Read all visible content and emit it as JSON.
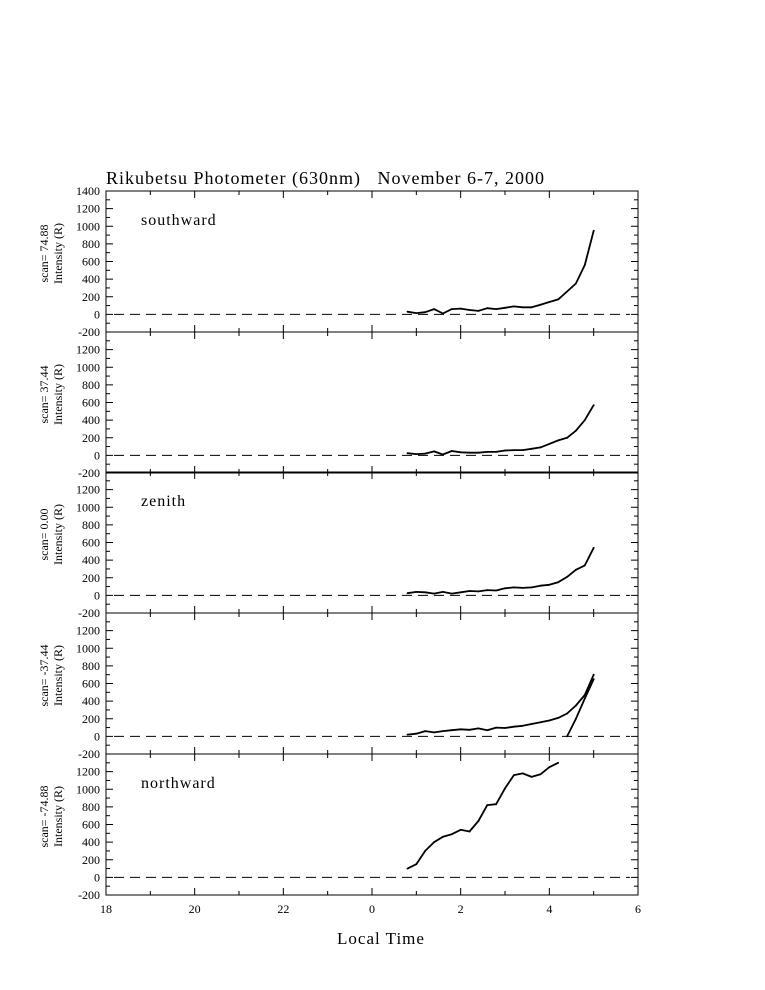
{
  "chart_data": {
    "type": "line",
    "title": "Rikubetsu Photometer (630nm)   November 6-7, 2000",
    "xlabel": "Local Time",
    "x_ticks": [
      "18",
      "20",
      "22",
      "0",
      "2",
      "4",
      "6"
    ],
    "xlim": [
      18,
      30
    ],
    "panels": [
      {
        "scan_label": "scan= 74.88",
        "ylabel": "Intensity (R)",
        "annotation": "southward",
        "ylim": [
          -200,
          1400
        ],
        "y_ticks": [
          "-200",
          "0",
          "200",
          "400",
          "600",
          "800",
          "1000",
          "1200",
          "1400"
        ],
        "series": [
          {
            "x": [
              24.8,
              25.0,
              25.2,
              25.4,
              25.6,
              25.8,
              26.0,
              26.2,
              26.4,
              26.6,
              26.8,
              27.0,
              27.2,
              27.4,
              27.6,
              27.8,
              28.0,
              28.2,
              28.4,
              28.6,
              28.8,
              29.0
            ],
            "y": [
              30,
              15,
              25,
              60,
              10,
              60,
              65,
              50,
              40,
              70,
              60,
              75,
              90,
              80,
              80,
              110,
              140,
              170,
              260,
              350,
              560,
              950
            ]
          }
        ]
      },
      {
        "scan_label": "scan= 37.44",
        "ylabel": "Intensity (R)",
        "annotation": "",
        "ylim": [
          -200,
          1400
        ],
        "y_ticks": [
          "-200",
          "0",
          "200",
          "400",
          "600",
          "800",
          "1000",
          "1200"
        ],
        "series": [
          {
            "x": [
              24.8,
              25.0,
              25.2,
              25.4,
              25.6,
              25.8,
              26.0,
              26.2,
              26.4,
              26.6,
              26.8,
              27.0,
              27.2,
              27.4,
              27.6,
              27.8,
              28.0,
              28.2,
              28.4,
              28.6,
              28.8,
              29.0
            ],
            "y": [
              25,
              15,
              20,
              45,
              10,
              50,
              35,
              30,
              30,
              40,
              40,
              55,
              60,
              60,
              75,
              90,
              130,
              170,
              200,
              280,
              400,
              570
            ]
          }
        ]
      },
      {
        "scan_label": "scan= 0.00",
        "ylabel": "Intensity (R)",
        "annotation": "zenith",
        "ylim": [
          -200,
          1400
        ],
        "y_ticks": [
          "-200",
          "0",
          "200",
          "400",
          "600",
          "800",
          "1000",
          "1200"
        ],
        "series": [
          {
            "x": [
              24.8,
              25.0,
              25.2,
              25.4,
              25.6,
              25.8,
              26.0,
              26.2,
              26.4,
              26.6,
              26.8,
              27.0,
              27.2,
              27.4,
              27.6,
              27.8,
              28.0,
              28.2,
              28.4,
              28.6,
              28.8,
              29.0
            ],
            "y": [
              25,
              40,
              35,
              20,
              40,
              20,
              35,
              50,
              45,
              60,
              55,
              80,
              90,
              85,
              90,
              110,
              120,
              150,
              210,
              290,
              340,
              540
            ]
          }
        ]
      },
      {
        "scan_label": "scan= -37.44",
        "ylabel": "Intensity (R)",
        "annotation": "",
        "ylim": [
          -200,
          1400
        ],
        "y_ticks": [
          "-200",
          "0",
          "200",
          "400",
          "600",
          "800",
          "1000",
          "1200"
        ],
        "series": [
          {
            "x": [
              24.8,
              25.0,
              25.2,
              25.4,
              25.6,
              25.8,
              26.0,
              26.2,
              26.4,
              26.6,
              26.8,
              27.0,
              27.2,
              27.4,
              27.6,
              27.8,
              28.0,
              28.2,
              28.4,
              28.6,
              28.8,
              29.0
            ],
            "y": [
              20,
              30,
              60,
              45,
              60,
              70,
              80,
              75,
              90,
              70,
              100,
              95,
              110,
              120,
              140,
              160,
              180,
              210,
              260,
              350,
              470,
              700
            ]
          },
          {
            "x": [
              28.4,
              28.6,
              28.8,
              29.0
            ],
            "y": [
              0,
              200,
              430,
              650
            ]
          }
        ]
      },
      {
        "scan_label": "scan= -74.88",
        "ylabel": "Intensity (R)",
        "annotation": "northward",
        "ylim": [
          -200,
          1400
        ],
        "y_ticks": [
          "-200",
          "0",
          "200",
          "400",
          "600",
          "800",
          "1000",
          "1200"
        ],
        "series": [
          {
            "x": [
              24.8,
              25.0,
              25.2,
              25.4,
              25.6,
              25.8,
              26.0,
              26.2,
              26.4,
              26.6,
              26.8,
              27.0,
              27.2,
              27.4,
              27.6,
              27.8,
              28.0,
              28.2
            ],
            "y": [
              100,
              150,
              300,
              400,
              460,
              490,
              540,
              520,
              640,
              820,
              830,
              1010,
              1160,
              1180,
              1140,
              1170,
              1250,
              1300
            ]
          }
        ]
      }
    ]
  }
}
